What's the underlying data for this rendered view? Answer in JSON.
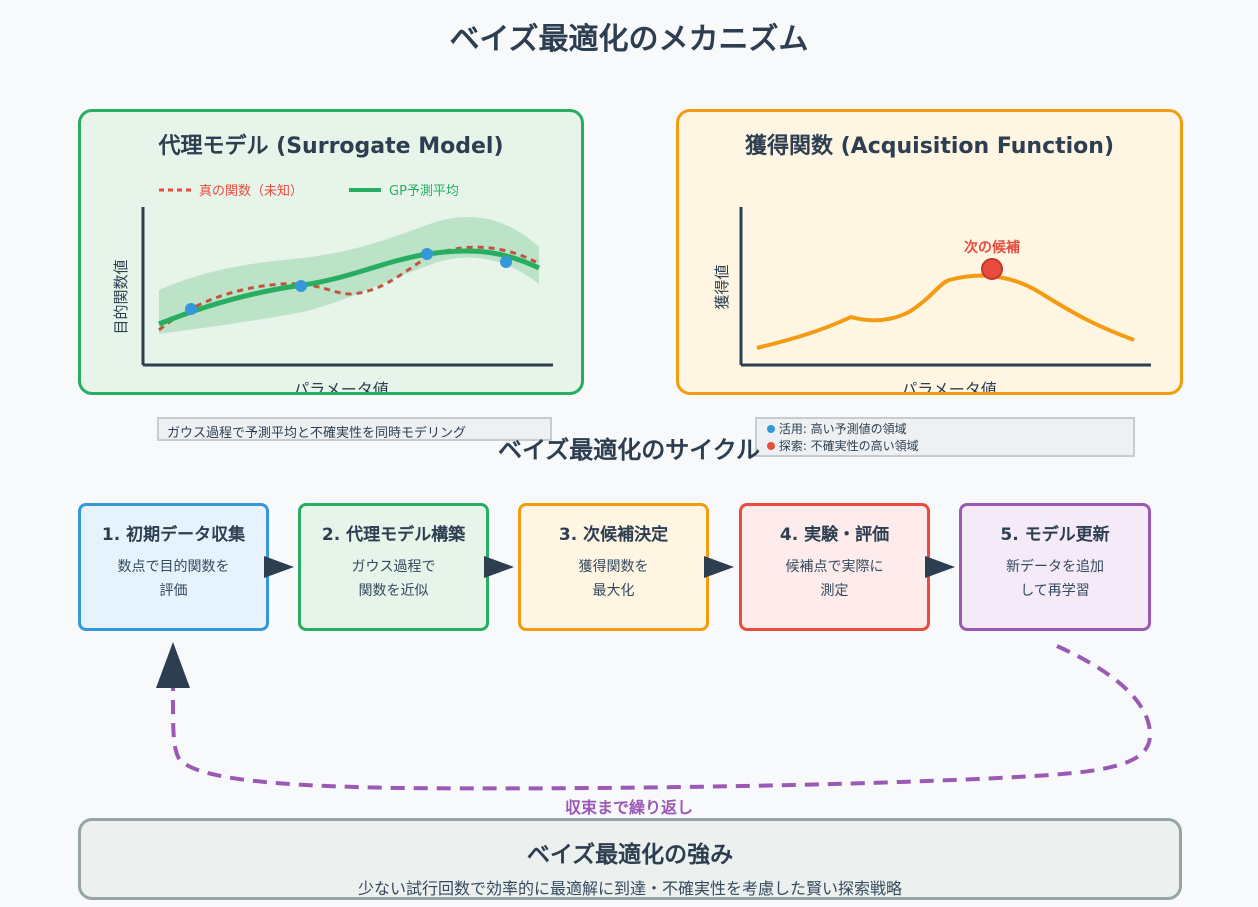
{
  "title": "ベイズ最適化のメカニズム",
  "surrogate": {
    "title": "代理モデル (Surrogate Model)",
    "legend_true": "真の関数（未知）",
    "legend_gp": "GP予測平均",
    "ylabel": "目的関数値",
    "xlabel": "パラメータ値",
    "note": "ガウス過程で予測平均と不確実性を同時モデリング"
  },
  "acquisition": {
    "title": "獲得関数 (Acquisition Function)",
    "ylabel": "獲得値",
    "xlabel": "パラメータ値",
    "next_label": "次の候補",
    "note_exploit": "活用: 高い予測値の領域",
    "note_explore": "探索: 不確実性の高い領域"
  },
  "cycle": {
    "title": "ベイズ最適化のサイクル",
    "steps": [
      {
        "title": "1. 初期データ収集",
        "line1": "数点で目的関数を",
        "line2": "評価"
      },
      {
        "title": "2. 代理モデル構築",
        "line1": "ガウス過程で",
        "line2": "関数を近似"
      },
      {
        "title": "3. 次候補決定",
        "line1": "獲得関数を",
        "line2": "最大化"
      },
      {
        "title": "4. 実験・評価",
        "line1": "候補点で実際に",
        "line2": "測定"
      },
      {
        "title": "5. モデル更新",
        "line1": "新データを追加",
        "line2": "して再学習"
      }
    ],
    "loop_label": "収束まで繰り返し"
  },
  "strength": {
    "title": "ベイズ最適化の強み",
    "desc": "少ない試行回数で効率的に最適解に到達・不確実性を考慮した賢い探索戦略"
  },
  "colors": {
    "green": "#27ae60",
    "orange": "#f39c12",
    "blue": "#3498db",
    "red": "#e74c3c",
    "purple": "#9b59b6",
    "dark": "#2c3e50"
  }
}
